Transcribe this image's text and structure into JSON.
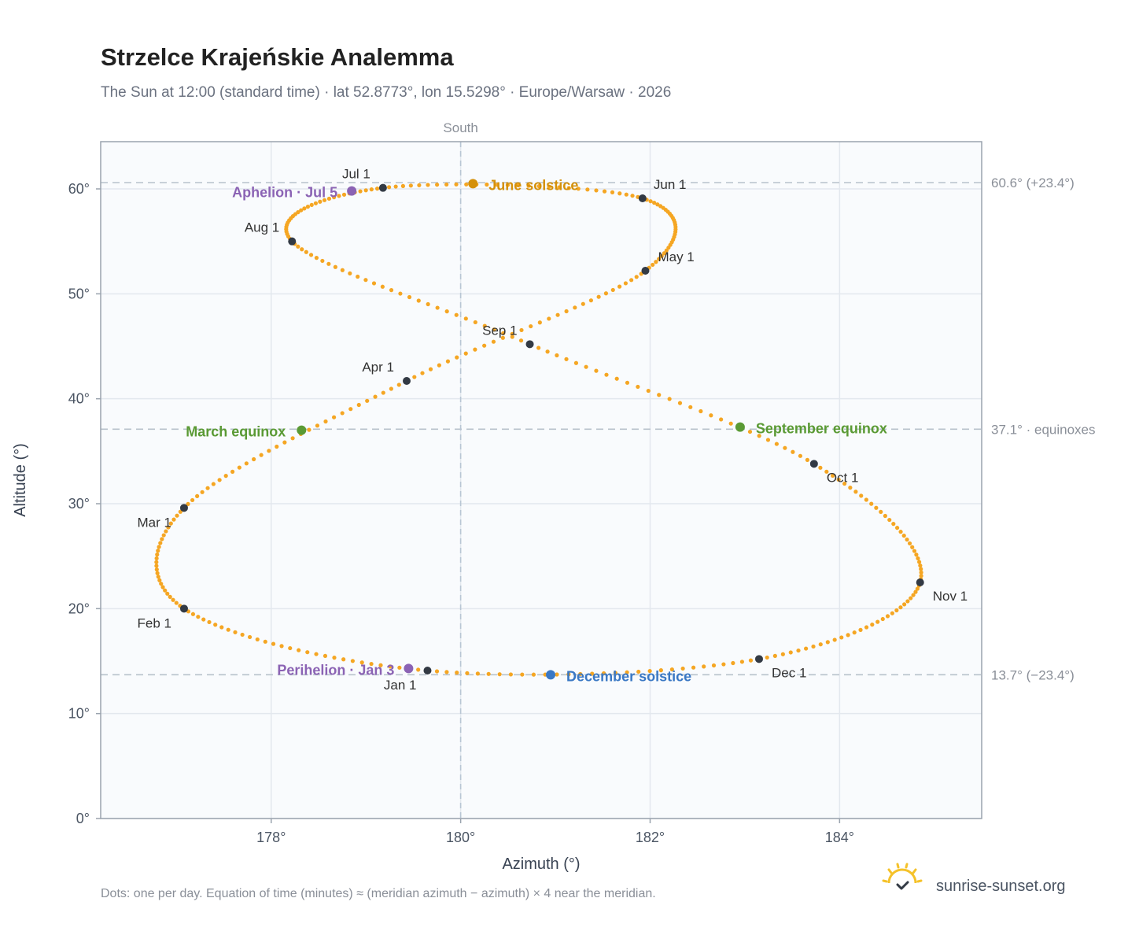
{
  "header": {
    "title": "Strzelce Krajeńskie Analemma",
    "subtitle": "The Sun at 12:00 (standard time) · lat 52.8773°, lon 15.5298° · Europe/Warsaw · 2026"
  },
  "chart_data": {
    "type": "scatter",
    "xlabel": "Azimuth (°)",
    "ylabel": "Altitude (°)",
    "xlim": [
      176.2,
      185.5
    ],
    "ylim": [
      0,
      64.5
    ],
    "x_ticks": [
      178,
      180,
      182,
      184
    ],
    "x_tick_labels": [
      "178°",
      "180°",
      "182°",
      "184°"
    ],
    "y_ticks": [
      0,
      10,
      20,
      30,
      40,
      50,
      60
    ],
    "y_tick_labels": [
      "0°",
      "10°",
      "20°",
      "30°",
      "40°",
      "50°",
      "60°"
    ],
    "grid": true,
    "meridian": {
      "azimuth": 180,
      "label": "South"
    },
    "reference_lines": [
      {
        "altitude": 60.6,
        "label": "60.6° (+23.4°)"
      },
      {
        "altitude": 37.1,
        "label": "37.1° · equinoxes"
      },
      {
        "altitude": 13.7,
        "label": "13.7° (−23.4°)"
      }
    ],
    "curve_color": "#f5a623",
    "month_marker_color": "#333a44",
    "month_markers": [
      {
        "label": "Jan 1",
        "azimuth": 179.65,
        "altitude": 14.1
      },
      {
        "label": "Feb 1",
        "azimuth": 177.08,
        "altitude": 20.0
      },
      {
        "label": "Mar 1",
        "azimuth": 177.08,
        "altitude": 29.6
      },
      {
        "label": "Apr 1",
        "azimuth": 179.43,
        "altitude": 41.7
      },
      {
        "label": "May 1",
        "azimuth": 181.95,
        "altitude": 52.2
      },
      {
        "label": "Jun 1",
        "azimuth": 181.92,
        "altitude": 59.1
      },
      {
        "label": "Jul 1",
        "azimuth": 179.18,
        "altitude": 60.1
      },
      {
        "label": "Aug 1",
        "azimuth": 178.22,
        "altitude": 55.0
      },
      {
        "label": "Sep 1",
        "azimuth": 180.73,
        "altitude": 45.2
      },
      {
        "label": "Oct 1",
        "azimuth": 183.73,
        "altitude": 33.8
      },
      {
        "label": "Nov 1",
        "azimuth": 184.85,
        "altitude": 22.5
      },
      {
        "label": "Dec 1",
        "azimuth": 183.15,
        "altitude": 15.2
      }
    ],
    "events": [
      {
        "label": "June solstice",
        "azimuth": 180.13,
        "altitude": 60.5,
        "color": "#d4900a"
      },
      {
        "label": "Aphelion · Jul 5",
        "azimuth": 178.85,
        "altitude": 59.8,
        "color": "#8b63b4"
      },
      {
        "label": "March equinox",
        "azimuth": 178.32,
        "altitude": 37.0,
        "color": "#5a9a34"
      },
      {
        "label": "September equinox",
        "azimuth": 182.95,
        "altitude": 37.3,
        "color": "#5a9a34"
      },
      {
        "label": "Perihelion · Jan 3",
        "azimuth": 179.45,
        "altitude": 14.3,
        "color": "#8b63b4"
      },
      {
        "label": "December solstice",
        "azimuth": 180.95,
        "altitude": 13.7,
        "color": "#3a78c4"
      }
    ]
  },
  "footer": {
    "note": "Dots: one per day. Equation of time (minutes) ≈ (meridian azimuth − azimuth) × 4 near the meridian.",
    "brand": "sunrise-sunset.org",
    "logo_icon": "sun-logo-icon"
  }
}
